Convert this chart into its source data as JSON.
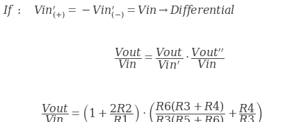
{
  "background_color": "#ffffff",
  "figsize": [
    4.2,
    1.76
  ],
  "dpi": 100,
  "font_color": "#404040",
  "font_size": 11.5
}
